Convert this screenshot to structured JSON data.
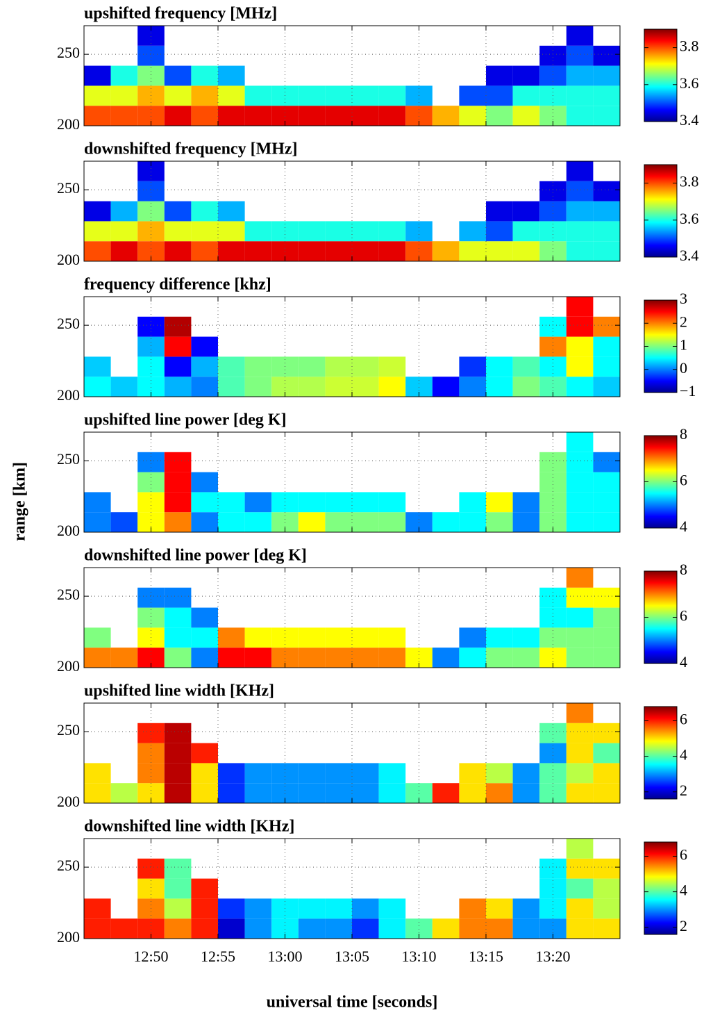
{
  "figure": {
    "ylabel": "range [km]",
    "xlabel": "universal time [seconds]"
  },
  "chart_data": [
    {
      "type": "heatmap",
      "title": "upshifted frequency [MHz]",
      "xbins": [
        765,
        767,
        769,
        771,
        773,
        775,
        777,
        779,
        781,
        783,
        785,
        787,
        789,
        791,
        793,
        795,
        797,
        799,
        801,
        803,
        805
      ],
      "ybins": [
        200,
        214,
        228,
        242,
        256,
        270
      ],
      "values": [
        [
          3.8,
          3.8,
          3.8,
          3.85,
          3.8,
          3.85,
          3.85,
          3.85,
          3.85,
          3.85,
          3.85,
          3.85,
          3.8,
          3.75,
          3.7,
          3.65,
          3.7,
          3.65,
          3.6,
          3.6
        ],
        [
          3.7,
          3.7,
          3.75,
          3.7,
          3.75,
          3.7,
          3.6,
          3.6,
          3.6,
          3.6,
          3.6,
          3.6,
          3.55,
          null,
          3.5,
          3.5,
          3.6,
          3.6,
          3.6,
          3.6
        ],
        [
          3.45,
          3.6,
          3.65,
          3.5,
          3.6,
          3.55,
          null,
          null,
          null,
          null,
          null,
          null,
          null,
          null,
          null,
          3.45,
          3.45,
          3.5,
          3.55,
          3.55
        ],
        [
          null,
          null,
          3.5,
          null,
          null,
          null,
          null,
          null,
          null,
          null,
          null,
          null,
          null,
          null,
          null,
          null,
          null,
          3.45,
          3.5,
          3.45
        ],
        [
          null,
          null,
          3.45,
          null,
          null,
          null,
          null,
          null,
          null,
          null,
          null,
          null,
          null,
          null,
          null,
          null,
          null,
          null,
          3.45,
          null
        ]
      ],
      "xlim": [
        765,
        805
      ],
      "ylim": [
        200,
        270
      ],
      "xticks": [
        770,
        775,
        780,
        785,
        790,
        795,
        800
      ],
      "xticklabels": false,
      "yticks": [
        200,
        250
      ],
      "clim": [
        3.4,
        3.9
      ],
      "cticks": [
        3.4,
        3.6,
        3.8
      ],
      "grid": true,
      "colormap": "jet"
    },
    {
      "type": "heatmap",
      "title": "downshifted frequency [MHz]",
      "xbins": [
        765,
        767,
        769,
        771,
        773,
        775,
        777,
        779,
        781,
        783,
        785,
        787,
        789,
        791,
        793,
        795,
        797,
        799,
        801,
        803,
        805
      ],
      "ybins": [
        200,
        214,
        228,
        242,
        256,
        270
      ],
      "values": [
        [
          3.8,
          3.85,
          3.8,
          3.85,
          3.8,
          3.85,
          3.85,
          3.85,
          3.85,
          3.85,
          3.85,
          3.85,
          3.8,
          3.75,
          3.7,
          3.7,
          3.7,
          3.65,
          3.6,
          3.6
        ],
        [
          3.7,
          3.7,
          3.75,
          3.7,
          3.7,
          3.7,
          3.6,
          3.6,
          3.6,
          3.6,
          3.6,
          3.6,
          3.55,
          null,
          3.55,
          3.5,
          3.6,
          3.6,
          3.6,
          3.6
        ],
        [
          3.45,
          3.55,
          3.65,
          3.5,
          3.6,
          3.55,
          null,
          null,
          null,
          null,
          null,
          null,
          null,
          null,
          null,
          3.45,
          3.45,
          3.5,
          3.55,
          3.55
        ],
        [
          null,
          null,
          3.5,
          null,
          null,
          null,
          null,
          null,
          null,
          null,
          null,
          null,
          null,
          null,
          null,
          null,
          null,
          3.45,
          3.5,
          3.45
        ],
        [
          null,
          null,
          3.45,
          null,
          null,
          null,
          null,
          null,
          null,
          null,
          null,
          null,
          null,
          null,
          null,
          null,
          null,
          null,
          3.45,
          null
        ]
      ],
      "xlim": [
        765,
        805
      ],
      "ylim": [
        200,
        270
      ],
      "xticks": [
        770,
        775,
        780,
        785,
        790,
        795,
        800
      ],
      "xticklabels": false,
      "yticks": [
        200,
        250
      ],
      "clim": [
        3.4,
        3.9
      ],
      "cticks": [
        3.4,
        3.6,
        3.8
      ],
      "grid": true,
      "colormap": "jet"
    },
    {
      "type": "heatmap",
      "title": "frequency difference [khz]",
      "xbins": [
        765,
        767,
        769,
        771,
        773,
        775,
        777,
        779,
        781,
        783,
        785,
        787,
        789,
        791,
        793,
        795,
        797,
        799,
        801,
        803,
        805
      ],
      "ybins": [
        200,
        214,
        228,
        242,
        256,
        270
      ],
      "values": [
        [
          0.5,
          0.3,
          0.5,
          0.2,
          0,
          0.8,
          1,
          1.2,
          1.2,
          1.3,
          1.3,
          1.5,
          0.3,
          -0.5,
          0,
          0.5,
          1,
          0.8,
          0.5,
          0.3
        ],
        [
          0.3,
          null,
          0.5,
          -0.5,
          0.2,
          0.8,
          1,
          1,
          1,
          1.2,
          1.2,
          1.3,
          null,
          null,
          -0.3,
          0.5,
          0.8,
          0.5,
          1.5,
          0.5
        ],
        [
          null,
          null,
          0.2,
          2.5,
          -0.5,
          null,
          null,
          null,
          null,
          null,
          null,
          null,
          null,
          null,
          null,
          null,
          null,
          2,
          1.5,
          0.5
        ],
        [
          null,
          null,
          -0.5,
          2.8,
          null,
          null,
          null,
          null,
          null,
          null,
          null,
          null,
          null,
          null,
          null,
          null,
          null,
          0.5,
          2.5,
          2
        ],
        [
          null,
          null,
          null,
          null,
          null,
          null,
          null,
          null,
          null,
          null,
          null,
          null,
          null,
          null,
          null,
          null,
          null,
          null,
          2.5,
          null
        ]
      ],
      "xlim": [
        765,
        805
      ],
      "ylim": [
        200,
        270
      ],
      "xticks": [
        770,
        775,
        780,
        785,
        790,
        795,
        800
      ],
      "xticklabels": false,
      "yticks": [
        200,
        250
      ],
      "clim": [
        -1,
        3
      ],
      "cticks": [
        {
          "value": -1,
          "label": "−1"
        },
        0,
        1,
        2,
        3
      ],
      "grid": true,
      "colormap": "jet"
    },
    {
      "type": "heatmap",
      "title": "upshifted line power  [deg K]",
      "xbins": [
        765,
        767,
        769,
        771,
        773,
        775,
        777,
        779,
        781,
        783,
        785,
        787,
        789,
        791,
        793,
        795,
        797,
        799,
        801,
        803,
        805
      ],
      "ybins": [
        200,
        214,
        228,
        242,
        256,
        270
      ],
      "values": [
        [
          5,
          4.8,
          6.5,
          7,
          5,
          5.5,
          5.5,
          6,
          6.5,
          6,
          6,
          6,
          5,
          5.5,
          5.5,
          6,
          5,
          6,
          5.5,
          5.5
        ],
        [
          5,
          null,
          6.5,
          7.5,
          5.5,
          5.5,
          5,
          5.5,
          5.5,
          5.5,
          5.5,
          5.5,
          null,
          null,
          5.5,
          6.5,
          5,
          6,
          5.5,
          5.5
        ],
        [
          null,
          null,
          6,
          7.5,
          5,
          null,
          null,
          null,
          null,
          null,
          null,
          null,
          null,
          null,
          null,
          null,
          null,
          6,
          5.5,
          5.5
        ],
        [
          null,
          null,
          5,
          7.5,
          null,
          null,
          null,
          null,
          null,
          null,
          null,
          null,
          null,
          null,
          null,
          null,
          null,
          6,
          5.5,
          5
        ],
        [
          null,
          null,
          null,
          null,
          null,
          null,
          null,
          null,
          null,
          null,
          null,
          null,
          null,
          null,
          null,
          null,
          null,
          null,
          5.5,
          null
        ]
      ],
      "xlim": [
        765,
        805
      ],
      "ylim": [
        200,
        270
      ],
      "xticks": [
        770,
        775,
        780,
        785,
        790,
        795,
        800
      ],
      "xticklabels": false,
      "yticks": [
        200,
        250
      ],
      "clim": [
        4,
        8
      ],
      "cticks": [
        4,
        6,
        8
      ],
      "grid": true,
      "colormap": "jet"
    },
    {
      "type": "heatmap",
      "title": "downshifted line power [deg K]",
      "xbins": [
        765,
        767,
        769,
        771,
        773,
        775,
        777,
        779,
        781,
        783,
        785,
        787,
        789,
        791,
        793,
        795,
        797,
        799,
        801,
        803,
        805
      ],
      "ybins": [
        200,
        214,
        228,
        242,
        256,
        270
      ],
      "values": [
        [
          7,
          7,
          7.5,
          6,
          5,
          7.5,
          7.5,
          7,
          7,
          7,
          7,
          7,
          6.5,
          5,
          5.5,
          6,
          6,
          6.5,
          6,
          6
        ],
        [
          6,
          null,
          6.5,
          5.5,
          5.5,
          7,
          6.5,
          6.5,
          6.5,
          6.5,
          6.5,
          6.5,
          null,
          null,
          5,
          5.5,
          5.5,
          6,
          6,
          6
        ],
        [
          null,
          null,
          6,
          5.5,
          5,
          null,
          null,
          null,
          null,
          null,
          null,
          null,
          null,
          null,
          null,
          null,
          null,
          5.5,
          5.5,
          6
        ],
        [
          null,
          null,
          5,
          5,
          null,
          null,
          null,
          null,
          null,
          null,
          null,
          null,
          null,
          null,
          null,
          null,
          null,
          5.5,
          6.5,
          6.5
        ],
        [
          null,
          null,
          null,
          null,
          null,
          null,
          null,
          null,
          null,
          null,
          null,
          null,
          null,
          null,
          null,
          null,
          null,
          null,
          7,
          null
        ]
      ],
      "xlim": [
        765,
        805
      ],
      "ylim": [
        200,
        270
      ],
      "xticks": [
        770,
        775,
        780,
        785,
        790,
        795,
        800
      ],
      "xticklabels": false,
      "yticks": [
        200,
        250
      ],
      "clim": [
        4,
        8
      ],
      "cticks": [
        4,
        6,
        8
      ],
      "grid": true,
      "colormap": "jet"
    },
    {
      "type": "heatmap",
      "title": "upshifted line width  [KHz]",
      "xbins": [
        765,
        767,
        769,
        771,
        773,
        775,
        777,
        779,
        781,
        783,
        785,
        787,
        789,
        791,
        793,
        795,
        797,
        799,
        801,
        803,
        805
      ],
      "ybins": [
        200,
        214,
        228,
        242,
        256,
        270
      ],
      "values": [
        [
          5,
          4.5,
          5,
          6.5,
          5,
          2.5,
          3,
          3,
          3,
          3,
          3,
          3.5,
          4,
          6,
          5,
          5.5,
          3,
          4,
          5,
          5
        ],
        [
          5,
          null,
          5.5,
          6.5,
          5,
          2.5,
          3,
          3,
          3,
          3,
          3,
          3.5,
          null,
          null,
          5,
          4.5,
          3,
          4,
          4.5,
          5
        ],
        [
          null,
          null,
          5.5,
          6.5,
          6,
          null,
          null,
          null,
          null,
          null,
          null,
          null,
          null,
          null,
          null,
          null,
          null,
          3,
          5,
          4
        ],
        [
          null,
          null,
          6,
          6.5,
          null,
          null,
          null,
          null,
          null,
          null,
          null,
          null,
          null,
          null,
          null,
          null,
          null,
          4,
          5,
          5
        ],
        [
          null,
          null,
          null,
          null,
          null,
          null,
          null,
          null,
          null,
          null,
          null,
          null,
          null,
          null,
          null,
          null,
          null,
          null,
          5.5,
          null
        ]
      ],
      "xlim": [
        765,
        805
      ],
      "ylim": [
        200,
        270
      ],
      "xticks": [
        770,
        775,
        780,
        785,
        790,
        795,
        800
      ],
      "xticklabels": false,
      "yticks": [
        200,
        250
      ],
      "clim": [
        1.6,
        6.8
      ],
      "cticks": [
        2,
        4,
        6
      ],
      "grid": true,
      "colormap": "jet"
    },
    {
      "type": "heatmap",
      "title": "downshifted line width [KHz]",
      "xbins": [
        765,
        767,
        769,
        771,
        773,
        775,
        777,
        779,
        781,
        783,
        785,
        787,
        789,
        791,
        793,
        795,
        797,
        799,
        801,
        803,
        805
      ],
      "ybins": [
        200,
        214,
        228,
        242,
        256,
        270
      ],
      "values": [
        [
          6,
          6,
          6,
          5.5,
          6,
          2,
          3,
          3.5,
          3,
          3,
          2.5,
          3.5,
          4,
          5,
          5.5,
          5.5,
          3,
          3,
          5,
          5
        ],
        [
          6,
          null,
          5.5,
          4.5,
          6,
          2.5,
          3,
          3.5,
          3.5,
          3.5,
          3,
          3.5,
          null,
          null,
          5.5,
          5,
          3,
          3.5,
          5,
          4.5
        ],
        [
          null,
          null,
          5,
          4,
          6,
          null,
          null,
          null,
          null,
          null,
          null,
          null,
          null,
          null,
          null,
          null,
          null,
          3.5,
          4,
          4.5
        ],
        [
          null,
          null,
          6,
          4,
          null,
          null,
          null,
          null,
          null,
          null,
          null,
          null,
          null,
          null,
          null,
          null,
          null,
          3.5,
          5,
          5
        ],
        [
          null,
          null,
          null,
          null,
          null,
          null,
          null,
          null,
          null,
          null,
          null,
          null,
          null,
          null,
          null,
          null,
          null,
          null,
          4.5,
          null
        ]
      ],
      "xlim": [
        765,
        805
      ],
      "ylim": [
        200,
        270
      ],
      "xticks": [
        {
          "value": 770,
          "label": "12:50"
        },
        {
          "value": 775,
          "label": "12:55"
        },
        {
          "value": 780,
          "label": "13:00"
        },
        {
          "value": 785,
          "label": "13:05"
        },
        {
          "value": 790,
          "label": "13:10"
        },
        {
          "value": 795,
          "label": "13:15"
        },
        {
          "value": 800,
          "label": "13:20"
        }
      ],
      "xticklabels": true,
      "yticks": [
        200,
        250
      ],
      "clim": [
        1.6,
        6.8
      ],
      "cticks": [
        2,
        4,
        6
      ],
      "grid": true,
      "colormap": "jet"
    }
  ]
}
